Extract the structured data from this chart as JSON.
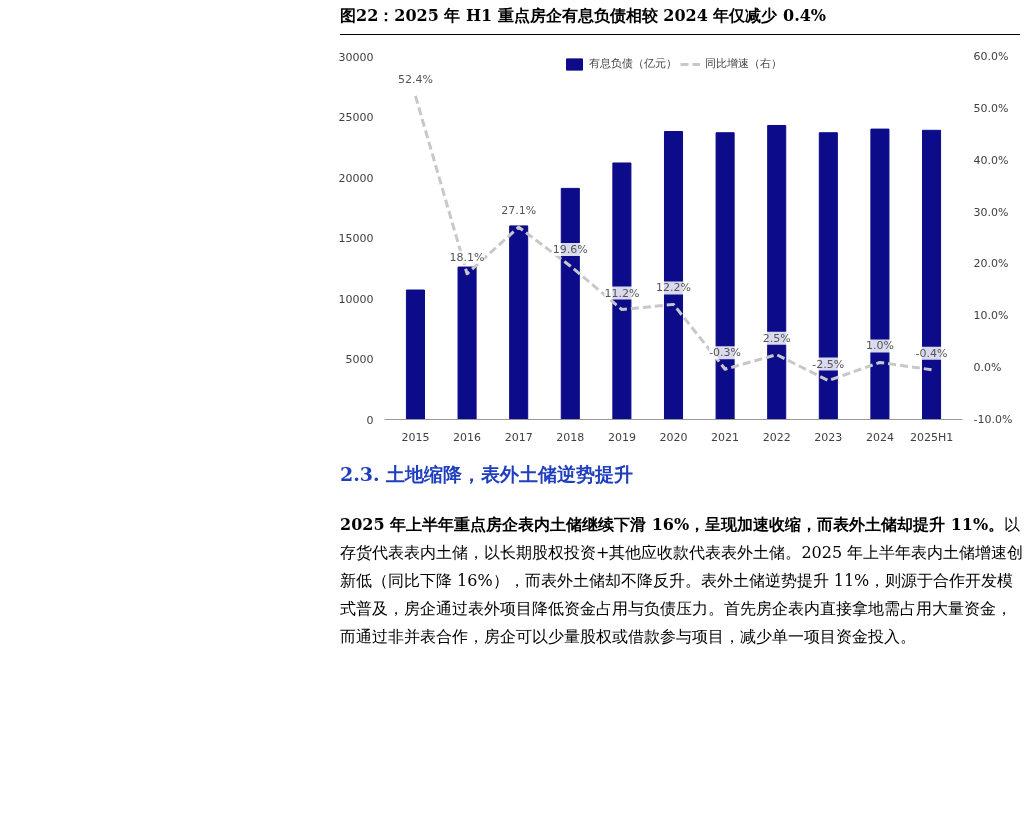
{
  "chart_data": {
    "type": "bar",
    "title": "图22：2025 年 H1 重点房企有息负债相较 2024 年仅减少 0.4%",
    "categories": [
      "2015",
      "2016",
      "2017",
      "2018",
      "2019",
      "2020",
      "2021",
      "2022",
      "2023",
      "2024",
      "2025H1"
    ],
    "series": [
      {
        "name": "有息负债（亿元）",
        "color": "#0c0c8a",
        "values": [
          10700,
          12600,
          16000,
          19100,
          21200,
          23800,
          23700,
          24300,
          23700,
          24000,
          23900
        ]
      },
      {
        "name": "同比增速（右）",
        "type": "line",
        "axis": "y2",
        "color": "#c8c8c8",
        "line_style": "dashed",
        "values": [
          52.4,
          18.1,
          27.1,
          19.6,
          11.2,
          12.2,
          -0.3,
          2.5,
          -2.5,
          1.0,
          -0.4
        ],
        "value_labels": [
          "52.4%",
          "18.1%",
          "27.1%",
          "19.6%",
          "11.2%",
          "12.2%",
          "-0.3%",
          "2.5%",
          "-2.5%",
          "1.0%",
          "-0.4%"
        ]
      }
    ],
    "ylim": [
      0,
      30000
    ],
    "yticks": [
      0,
      5000,
      10000,
      15000,
      20000,
      25000,
      30000
    ],
    "y2lim": [
      -10,
      60
    ],
    "y2ticks": [
      {
        "value": -10,
        "label": "-10.0%"
      },
      {
        "value": 0,
        "label": "0.0%"
      },
      {
        "value": 10,
        "label": "10.0%"
      },
      {
        "value": 20,
        "label": "20.0%"
      },
      {
        "value": 30,
        "label": "30.0%"
      },
      {
        "value": 40,
        "label": "40.0%"
      },
      {
        "value": 50,
        "label": "50.0%"
      },
      {
        "value": 60,
        "label": "60.0%"
      }
    ],
    "grid": false,
    "legend": "top",
    "marker": "none",
    "annotations": [
      "2.3.   土地缩降，表外土储逆势提升",
      "2025 年上半年重点房企表内土储继续下滑 16%，呈现加速收缩，而表外土储却提升 11%。",
      "以存货代表表内土储，以长期股权投资+其他应收款代表表外土储。2025 年上半年表内土储增速创新低（同比下降 16%），而表外土储却不降反升。表外土储逆势提升 11%，则源于合作开发模式普及，房企通过表外项目降低资金占用与负债压力。首先房企表内直接拿地需占用大量资金，而通过非并表合作，房企可以少量股权或借款参与项目，减少单一项目资金投入。"
    ]
  }
}
